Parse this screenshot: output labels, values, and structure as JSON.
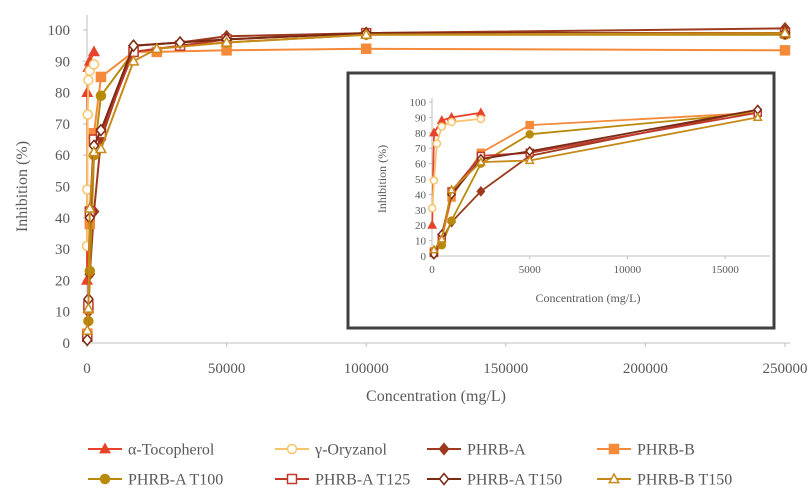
{
  "chart_data": [
    {
      "type": "line",
      "title": "",
      "xlabel": "Concentration (mg/L)",
      "ylabel": "Inhibition (%)",
      "xlim": [
        0,
        250000
      ],
      "ylim": [
        0,
        100
      ],
      "xticks": [
        "0",
        "50000",
        "100000",
        "150000",
        "200000",
        "250000"
      ],
      "yticks": [
        "0",
        "10",
        "20",
        "30",
        "40",
        "50",
        "60",
        "70",
        "80",
        "90",
        "100"
      ],
      "grid": false,
      "legend": "bottom",
      "series": [
        {
          "name": "α-Tocopherol",
          "color": "#e8432a",
          "marker": "triangle",
          "fill": true,
          "x": [
            10,
            100,
            500,
            1000,
            2500
          ],
          "y": [
            20,
            80,
            88,
            90,
            93
          ]
        },
        {
          "name": "γ-Oryzanol",
          "color": "#f7c46c",
          "marker": "circle",
          "fill": false,
          "x": [
            10,
            100,
            250,
            500,
            1000,
            2500
          ],
          "y": [
            31,
            49,
            73,
            84,
            87,
            89
          ]
        },
        {
          "name": "PHRB-A",
          "color": "#9c3a1e",
          "marker": "diamond",
          "fill": true,
          "x": [
            100,
            500,
            1000,
            2500,
            5000,
            16667,
            33333,
            50000,
            100000,
            250000
          ],
          "y": [
            2,
            10,
            22,
            42,
            65,
            95,
            96,
            98,
            99,
            100.5
          ]
        },
        {
          "name": "PHRB-B",
          "color": "#f58a3a",
          "marker": "square",
          "fill": true,
          "x": [
            100,
            500,
            1000,
            2500,
            5000,
            16667,
            25000,
            50000,
            100000,
            250000
          ],
          "y": [
            3,
            11,
            38,
            67,
            85,
            93,
            93,
            93.5,
            94,
            93.5
          ]
        },
        {
          "name": "PHRB-A T100",
          "color": "#b88a0a",
          "marker": "circle",
          "fill": true,
          "x": [
            100,
            500,
            1000,
            2500,
            5000,
            16667,
            33333,
            50000,
            100000,
            250000
          ],
          "y": [
            2,
            7,
            23,
            60,
            79,
            93,
            95,
            96,
            98.5,
            98.5
          ]
        },
        {
          "name": "PHRB-A T125",
          "color": "#c0392b",
          "marker": "square",
          "fill": false,
          "x": [
            100,
            500,
            1000,
            2500,
            5000,
            16667,
            33333,
            50000,
            100000,
            250000
          ],
          "y": [
            2,
            12,
            42,
            65,
            67,
            93,
            95,
            97,
            99,
            99
          ]
        },
        {
          "name": "PHRB-A T150",
          "color": "#7b2a14",
          "marker": "diamond",
          "fill": false,
          "x": [
            100,
            500,
            1000,
            2500,
            5000,
            16667,
            33333,
            50000,
            100000,
            250000
          ],
          "y": [
            1,
            14,
            40,
            63,
            68,
            95,
            96,
            97,
            99,
            99
          ]
        },
        {
          "name": "PHRB-B T150",
          "color": "#c78a1a",
          "marker": "triangle",
          "fill": false,
          "x": [
            100,
            500,
            1000,
            2500,
            5000,
            16667,
            25000,
            50000,
            100000,
            250000
          ],
          "y": [
            4,
            11,
            43,
            61,
            62,
            90,
            94,
            96,
            98.5,
            99
          ]
        }
      ]
    },
    {
      "type": "line",
      "title": "",
      "xlabel": "Concentration (mg/L)",
      "ylabel": "Inhibition (%)",
      "xlim": [
        0,
        17500
      ],
      "ylim": [
        0,
        100
      ],
      "xticks": [
        "0",
        "5000",
        "10000",
        "15000"
      ],
      "yticks": [
        "0",
        "10",
        "20",
        "30",
        "40",
        "50",
        "60",
        "70",
        "80",
        "90",
        "100"
      ],
      "grid": false,
      "legend": "none",
      "note": "inset zoom of the low-concentration region; uses the same series"
    }
  ]
}
